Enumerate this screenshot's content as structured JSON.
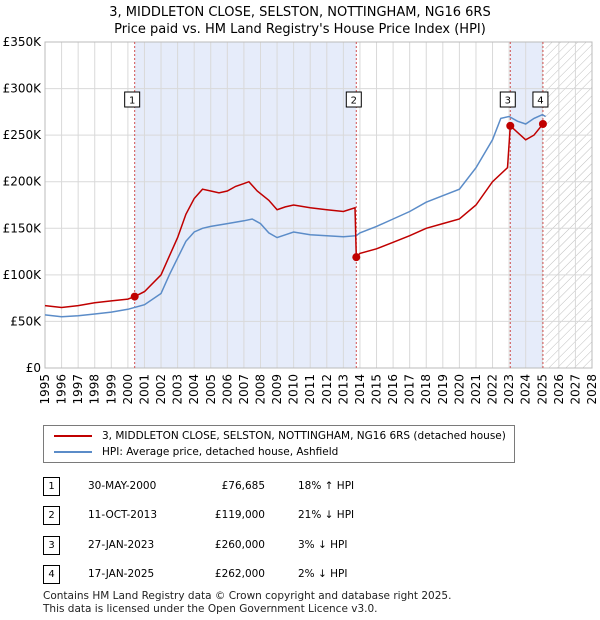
{
  "title": {
    "line1": "3, MIDDLETON CLOSE, SELSTON, NOTTINGHAM, NG16 6RS",
    "line2": "Price paid vs. HM Land Registry's House Price Index (HPI)"
  },
  "colors": {
    "price_paid": "#c00000",
    "hpi": "#5b8cc8",
    "shade": "#e6ecfa",
    "vline": "#d05050",
    "grid": "#d9d9d9"
  },
  "chart_data": {
    "type": "line",
    "title": "Price paid vs. HM Land Registry's House Price Index (HPI)",
    "xlabel": "",
    "ylabel": "",
    "xlim": [
      1995,
      2028
    ],
    "ylim": [
      0,
      350000
    ],
    "x_ticks": [
      "1995",
      "1996",
      "1997",
      "1998",
      "1999",
      "2000",
      "2001",
      "2002",
      "2003",
      "2004",
      "2005",
      "2006",
      "2007",
      "2008",
      "2009",
      "2010",
      "2011",
      "2012",
      "2013",
      "2014",
      "2015",
      "2016",
      "2017",
      "2018",
      "2019",
      "2020",
      "2021",
      "2022",
      "2023",
      "2024",
      "2025",
      "2026",
      "2027",
      "2028"
    ],
    "y_ticks": [
      {
        "value": 0,
        "label": "£0"
      },
      {
        "value": 50000,
        "label": "£50K"
      },
      {
        "value": 100000,
        "label": "£100K"
      },
      {
        "value": 150000,
        "label": "£150K"
      },
      {
        "value": 200000,
        "label": "£200K"
      },
      {
        "value": 250000,
        "label": "£250K"
      },
      {
        "value": 300000,
        "label": "£300K"
      },
      {
        "value": 350000,
        "label": "£350K"
      }
    ],
    "grid": true,
    "forecast_from": 2025.2,
    "series": [
      {
        "name": "3, MIDDLETON CLOSE, SELSTON, NOTTINGHAM, NG16 6RS (detached house)",
        "points": [
          [
            1995,
            67000
          ],
          [
            1996,
            65000
          ],
          [
            1997,
            67000
          ],
          [
            1998,
            70000
          ],
          [
            1999,
            72000
          ],
          [
            2000,
            74000
          ],
          [
            2000.41,
            76685
          ],
          [
            2001,
            82000
          ],
          [
            2002,
            100000
          ],
          [
            2002.5,
            120000
          ],
          [
            2003,
            140000
          ],
          [
            2003.5,
            165000
          ],
          [
            2004,
            182000
          ],
          [
            2004.5,
            192000
          ],
          [
            2005,
            190000
          ],
          [
            2005.5,
            188000
          ],
          [
            2006,
            190000
          ],
          [
            2006.5,
            195000
          ],
          [
            2007,
            198000
          ],
          [
            2007.3,
            200000
          ],
          [
            2007.8,
            190000
          ],
          [
            2008.5,
            180000
          ],
          [
            2009,
            170000
          ],
          [
            2009.5,
            173000
          ],
          [
            2010,
            175000
          ],
          [
            2011,
            172000
          ],
          [
            2012,
            170000
          ],
          [
            2013,
            168000
          ],
          [
            2013.7,
            172000
          ],
          [
            2013.78,
            119000
          ],
          [
            2014,
            123000
          ],
          [
            2015,
            128000
          ],
          [
            2016,
            135000
          ],
          [
            2017,
            142000
          ],
          [
            2018,
            150000
          ],
          [
            2019,
            155000
          ],
          [
            2020,
            160000
          ],
          [
            2021,
            175000
          ],
          [
            2022,
            200000
          ],
          [
            2022.9,
            215000
          ],
          [
            2023.07,
            260000
          ],
          [
            2023.5,
            253000
          ],
          [
            2024,
            245000
          ],
          [
            2024.5,
            250000
          ],
          [
            2025.04,
            262000
          ],
          [
            2025.2,
            262000
          ]
        ]
      },
      {
        "name": "HPI: Average price, detached house, Ashfield",
        "points": [
          [
            1995,
            57000
          ],
          [
            1996,
            55000
          ],
          [
            1997,
            56000
          ],
          [
            1998,
            58000
          ],
          [
            1999,
            60000
          ],
          [
            2000,
            63000
          ],
          [
            2001,
            68000
          ],
          [
            2002,
            80000
          ],
          [
            2002.5,
            100000
          ],
          [
            2003,
            118000
          ],
          [
            2003.5,
            136000
          ],
          [
            2004,
            146000
          ],
          [
            2004.5,
            150000
          ],
          [
            2005,
            152000
          ],
          [
            2006,
            155000
          ],
          [
            2007,
            158000
          ],
          [
            2007.5,
            160000
          ],
          [
            2008,
            155000
          ],
          [
            2008.5,
            145000
          ],
          [
            2009,
            140000
          ],
          [
            2009.5,
            143000
          ],
          [
            2010,
            146000
          ],
          [
            2011,
            143000
          ],
          [
            2012,
            142000
          ],
          [
            2013,
            141000
          ],
          [
            2013.78,
            142000
          ],
          [
            2014,
            145000
          ],
          [
            2015,
            152000
          ],
          [
            2016,
            160000
          ],
          [
            2017,
            168000
          ],
          [
            2018,
            178000
          ],
          [
            2019,
            185000
          ],
          [
            2020,
            192000
          ],
          [
            2021,
            215000
          ],
          [
            2022,
            245000
          ],
          [
            2022.5,
            268000
          ],
          [
            2023,
            270000
          ],
          [
            2023.5,
            265000
          ],
          [
            2024,
            262000
          ],
          [
            2024.5,
            268000
          ],
          [
            2025,
            272000
          ],
          [
            2025.2,
            270000
          ]
        ]
      }
    ],
    "sales": [
      {
        "num": "1",
        "x": 2000.41,
        "price": 76685
      },
      {
        "num": "2",
        "x": 2013.78,
        "price": 119000
      },
      {
        "num": "3",
        "x": 2023.07,
        "price": 260000
      },
      {
        "num": "4",
        "x": 2025.04,
        "price": 262000
      }
    ]
  },
  "legend": {
    "price_label": "3, MIDDLETON CLOSE, SELSTON, NOTTINGHAM, NG16 6RS (detached house)",
    "hpi_label": "HPI: Average price, detached house, Ashfield"
  },
  "transactions": [
    {
      "num": "1",
      "date": "30-MAY-2000",
      "price": "£76,685",
      "diff": "18% ↑ HPI"
    },
    {
      "num": "2",
      "date": "11-OCT-2013",
      "price": "£119,000",
      "diff": "21% ↓ HPI"
    },
    {
      "num": "3",
      "date": "27-JAN-2023",
      "price": "£260,000",
      "diff": "3% ↓ HPI"
    },
    {
      "num": "4",
      "date": "17-JAN-2025",
      "price": "£262,000",
      "diff": "2% ↓ HPI"
    }
  ],
  "footer": {
    "line1": "Contains HM Land Registry data © Crown copyright and database right 2025.",
    "line2": "This data is licensed under the Open Government Licence v3.0."
  }
}
